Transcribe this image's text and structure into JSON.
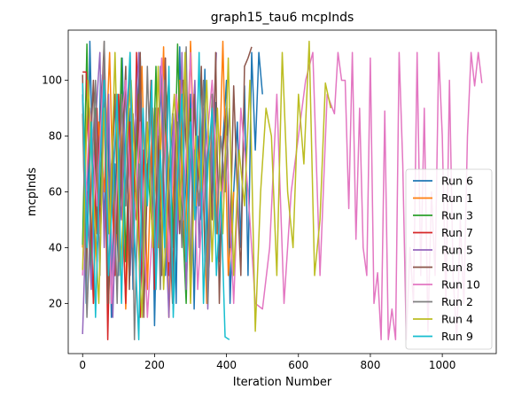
{
  "chart_data": {
    "type": "line",
    "title": "graph15_tau6 mcpInds",
    "xlabel": "Iteration Number",
    "ylabel": "mcpInds",
    "xlim": [
      -40,
      1150
    ],
    "ylim": [
      2,
      118
    ],
    "xticks": [
      0,
      200,
      400,
      600,
      800,
      1000
    ],
    "yticks": [
      20,
      40,
      60,
      80,
      100
    ],
    "grid": false,
    "legend_position": "lower-right",
    "series": [
      {
        "name": "Run 6",
        "color": "#1f77b4",
        "x": [
          0,
          10,
          20,
          30,
          40,
          50,
          60,
          70,
          80,
          90,
          100,
          110,
          120,
          130,
          140,
          150,
          160,
          170,
          180,
          190,
          200,
          210,
          220,
          230,
          240,
          250,
          260,
          270,
          280,
          290,
          300,
          310,
          320,
          330,
          340,
          350,
          360,
          370,
          380,
          390,
          400,
          410,
          420,
          430,
          440,
          450,
          460,
          470,
          480,
          490,
          500
        ],
        "y": [
          95,
          20,
          114,
          60,
          35,
          102,
          48,
          88,
          15,
          70,
          30,
          108,
          55,
          90,
          25,
          82,
          110,
          40,
          65,
          98,
          12,
          75,
          105,
          30,
          60,
          88,
          20,
          112,
          45,
          70,
          95,
          18,
          80,
          50,
          104,
          28,
          66,
          92,
          35,
          78,
          100,
          20,
          60,
          85,
          40,
          98,
          30,
          110,
          75,
          110,
          95
        ]
      },
      {
        "name": "Run 1",
        "color": "#ff7f0e",
        "x": [
          0,
          15,
          30,
          45,
          60,
          75,
          90,
          105,
          120,
          135,
          150,
          165,
          180,
          195,
          210,
          225,
          240,
          255,
          270,
          285,
          300,
          315,
          330,
          345,
          360,
          375,
          390,
          405,
          420
        ],
        "y": [
          40,
          100,
          20,
          85,
          60,
          110,
          30,
          95,
          18,
          75,
          50,
          105,
          25,
          90,
          40,
          112,
          15,
          70,
          100,
          35,
          114,
          55,
          80,
          20,
          95,
          45,
          114,
          30,
          60
        ]
      },
      {
        "name": "Run 3",
        "color": "#2ca02c",
        "x": [
          0,
          12,
          24,
          36,
          48,
          60,
          72,
          84,
          96,
          108,
          120,
          132,
          144,
          156,
          168,
          180,
          192,
          204,
          216,
          228,
          240,
          252,
          264,
          276,
          288,
          300
        ],
        "y": [
          41,
          113,
          30,
          90,
          55,
          100,
          20,
          75,
          45,
          108,
          35,
          85,
          60,
          95,
          25,
          70,
          50,
          105,
          30,
          80,
          100,
          40,
          113,
          55,
          20,
          90
        ]
      },
      {
        "name": "Run 7",
        "color": "#d62728",
        "x": [
          0,
          10,
          20,
          30,
          40,
          50,
          60,
          70,
          80,
          90,
          100,
          110,
          120,
          130,
          140,
          150,
          160,
          170,
          180,
          190,
          200,
          210,
          220,
          230,
          240,
          250
        ],
        "y": [
          103,
          103,
          60,
          20,
          90,
          45,
          100,
          7,
          70,
          30,
          95,
          55,
          20,
          85,
          40,
          110,
          15,
          75,
          60,
          100,
          25,
          90,
          50,
          108,
          30,
          70
        ]
      },
      {
        "name": "Run 5",
        "color": "#9467bd",
        "x": [
          0,
          12,
          24,
          36,
          48,
          60,
          72,
          84,
          96,
          108,
          120,
          132,
          144,
          156,
          168,
          180,
          192,
          204,
          216,
          228,
          240,
          252,
          264,
          276,
          288,
          300,
          312,
          324,
          336,
          348,
          360,
          372
        ],
        "y": [
          9,
          60,
          25,
          85,
          110,
          40,
          95,
          15,
          70,
          50,
          100,
          30,
          80,
          110,
          20,
          65,
          95,
          35,
          105,
          55,
          15,
          88,
          45,
          110,
          25,
          70,
          100,
          40,
          90,
          18,
          75,
          110
        ]
      },
      {
        "name": "Run 8",
        "color": "#8c564b",
        "x": [
          0,
          10,
          20,
          30,
          40,
          50,
          60,
          70,
          80,
          90,
          100,
          110,
          120,
          130,
          140,
          150,
          160,
          170,
          180,
          190,
          200,
          210,
          220,
          230,
          240,
          250,
          260,
          270,
          280,
          290,
          300,
          310,
          320,
          330,
          340,
          350,
          360,
          370,
          380,
          390,
          400,
          410,
          420,
          430,
          440,
          450,
          460,
          470
        ],
        "y": [
          102,
          30,
          70,
          100,
          45,
          85,
          114,
          20,
          60,
          95,
          35,
          75,
          105,
          25,
          88,
          50,
          110,
          15,
          65,
          98,
          40,
          80,
          30,
          108,
          55,
          20,
          90,
          45,
          100,
          70,
          25,
          95,
          60,
          105,
          35,
          80,
          50,
          110,
          20,
          75,
          90,
          40,
          98,
          60,
          30,
          105,
          108,
          112
        ]
      },
      {
        "name": "Run 10",
        "color": "#e377c2",
        "x": [
          0,
          20,
          40,
          60,
          80,
          100,
          120,
          140,
          160,
          180,
          200,
          220,
          240,
          260,
          280,
          300,
          320,
          340,
          360,
          380,
          400,
          420,
          440,
          460,
          480,
          500,
          520,
          540,
          560,
          580,
          600,
          620,
          640,
          660,
          680,
          700,
          710,
          720,
          730,
          740,
          750,
          760,
          770,
          780,
          790,
          800,
          810,
          820,
          830,
          840,
          850,
          860,
          870,
          880,
          890,
          900,
          910,
          920,
          930,
          940,
          950,
          960,
          970,
          980,
          990,
          1000,
          1010,
          1020,
          1030,
          1040,
          1050,
          1060,
          1070,
          1080,
          1090,
          1100,
          1110
        ],
        "y": [
          30,
          90,
          55,
          110,
          20,
          75,
          100,
          40,
          85,
          15,
          60,
          108,
          35,
          95,
          50,
          110,
          25,
          70,
          100,
          45,
          80,
          20,
          90,
          60,
          20,
          18,
          40,
          95,
          20,
          60,
          80,
          100,
          110,
          30,
          95,
          88,
          110,
          100,
          100,
          54,
          110,
          43,
          90,
          40,
          30,
          108,
          20,
          31,
          7,
          89,
          7,
          18,
          7,
          110,
          70,
          7,
          40,
          20,
          110,
          30,
          90,
          10,
          60,
          30,
          110,
          80,
          20,
          100,
          30,
          7,
          50,
          20,
          80,
          110,
          98,
          110,
          99
        ]
      },
      {
        "name": "Run 2",
        "color": "#7f7f7f",
        "x": [
          0,
          12,
          24,
          36,
          48,
          60,
          72,
          84,
          96,
          108,
          120,
          132,
          144,
          156,
          168,
          180,
          192,
          204,
          216,
          228,
          240,
          252,
          264,
          276,
          288,
          300,
          312,
          324,
          336,
          348,
          360,
          372,
          384,
          396,
          408
        ],
        "y": [
          88,
          15,
          60,
          100,
          30,
          114,
          45,
          80,
          20,
          95,
          55,
          110,
          7,
          70,
          35,
          105,
          50,
          90,
          25,
          100,
          65,
          18,
          85,
          40,
          112,
          30,
          75,
          55,
          100,
          20,
          95,
          45,
          80,
          60,
          90
        ]
      },
      {
        "name": "Run 4",
        "color": "#bcbd22",
        "x": [
          0,
          15,
          30,
          45,
          60,
          75,
          90,
          105,
          120,
          135,
          150,
          165,
          180,
          195,
          210,
          225,
          240,
          255,
          270,
          285,
          300,
          315,
          330,
          345,
          360,
          375,
          390,
          405,
          420,
          435,
          450,
          465,
          480,
          495,
          510,
          525,
          540,
          555,
          570,
          585,
          600,
          615,
          630,
          645,
          660,
          675,
          690
        ],
        "y": [
          32,
          100,
          60,
          20,
          90,
          45,
          110,
          30,
          75,
          100,
          55,
          15,
          85,
          40,
          105,
          25,
          70,
          95,
          50,
          110,
          20,
          80,
          60,
          100,
          35,
          90,
          45,
          108,
          30,
          75,
          55,
          100,
          10,
          60,
          90,
          80,
          30,
          110,
          60,
          40,
          95,
          70,
          114,
          30,
          50,
          99,
          90
        ]
      },
      {
        "name": "Run 9",
        "color": "#17becf",
        "x": [
          0,
          12,
          24,
          36,
          48,
          60,
          72,
          84,
          96,
          108,
          120,
          132,
          144,
          156,
          168,
          180,
          192,
          204,
          216,
          228,
          240,
          252,
          264,
          276,
          288,
          300,
          312,
          324,
          336,
          348,
          360,
          372,
          384,
          396,
          408
        ],
        "y": [
          99,
          40,
          85,
          15,
          70,
          100,
          30,
          60,
          95,
          20,
          80,
          110,
          45,
          7,
          90,
          55,
          100,
          25,
          75,
          40,
          105,
          15,
          65,
          95,
          35,
          85,
          50,
          110,
          20,
          70,
          90,
          30,
          60,
          8,
          7
        ]
      }
    ]
  }
}
